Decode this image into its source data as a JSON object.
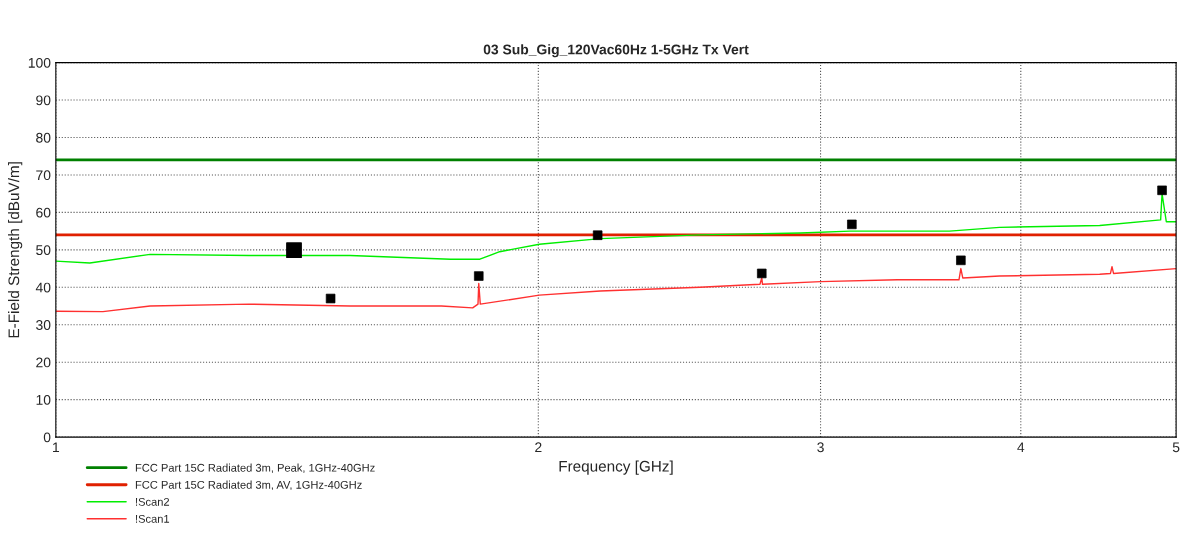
{
  "chart_data": {
    "type": "line",
    "title": "03 Sub_Gig_120Vac60Hz 1-5GHz Tx Vert",
    "xlabel": "Frequency [GHz]",
    "ylabel": "E-Field Strength [dBuV/m]",
    "log": "x",
    "xlim": [
      1,
      5
    ],
    "xticks": [
      1,
      2,
      3,
      4,
      5
    ],
    "ylim": [
      0,
      100
    ],
    "yticks": [
      0,
      10,
      20,
      30,
      40,
      50,
      60,
      70,
      80,
      90,
      100
    ],
    "grid": true,
    "legend": "bottom left",
    "line_style": "solid",
    "series": [
      {
        "name": "FCC Part 15C Radiated 3m, Peak, 1GHz-40GHz",
        "color": "#008000",
        "x": [
          1,
          5
        ],
        "values": [
          74,
          74
        ]
      },
      {
        "name": "FCC Part 15C Radiated 3m, AV, 1GHz-40GHz",
        "color": "#e02000",
        "x": [
          1,
          5
        ],
        "values": [
          54,
          54
        ]
      },
      {
        "name": "!Scan2",
        "color": "#00ee00",
        "x": [
          1.0,
          1.05,
          1.145,
          1.32,
          1.526,
          1.763,
          1.839,
          1.892,
          2.003,
          2.186,
          2.523,
          2.914,
          3.13,
          3.61,
          3.88,
          4.48,
          4.89,
          4.9,
          4.93,
          5.0
        ],
        "values": [
          47,
          46.5,
          48.8,
          48.5,
          48.5,
          47.5,
          47.5,
          49.5,
          51.5,
          53,
          54,
          54.5,
          55,
          55,
          56,
          56.5,
          58,
          65,
          57.5,
          57.5
        ]
      },
      {
        "name": "!Scan1",
        "color": "#ff3030",
        "x": [
          1.0,
          1.07,
          1.145,
          1.32,
          1.526,
          1.74,
          1.82,
          1.834,
          1.836,
          1.84,
          2.003,
          2.186,
          2.523,
          2.75,
          2.757,
          2.76,
          3.0,
          3.35,
          3.66,
          3.67,
          3.68,
          3.88,
          4.48,
          4.55,
          4.56,
          4.57,
          5.0
        ],
        "values": [
          33.6,
          33.5,
          35,
          35.5,
          35,
          35,
          34.5,
          35.5,
          41,
          35.5,
          37.9,
          39,
          40,
          40.8,
          42.5,
          40.8,
          41.5,
          42,
          42,
          45,
          42.5,
          43,
          43.5,
          43.7,
          45.5,
          43.7,
          45
        ]
      },
      {
        "type": "scatter",
        "color": "#000000",
        "marker": "square",
        "x": [
          1.484,
          1.836,
          2.178,
          2.757,
          3.138,
          3.67,
          4.9
        ],
        "values": [
          37,
          43,
          53.9,
          43.7,
          56.8,
          47.2,
          65.9
        ]
      },
      {
        "type": "scatter",
        "color": "#000000",
        "marker": "square",
        "x": [
          1.408
        ],
        "values": [
          49.9
        ]
      }
    ]
  }
}
